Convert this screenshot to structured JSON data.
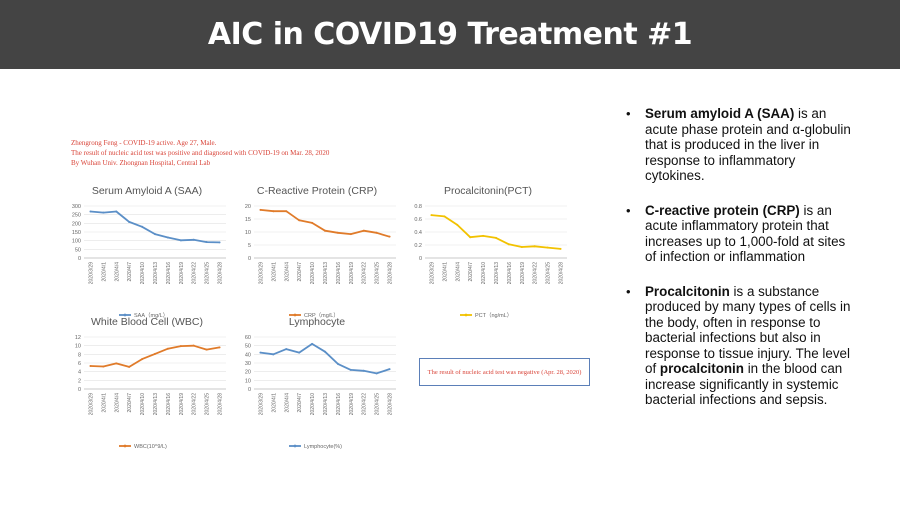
{
  "slide": {
    "title": "AIC in COVID19 Treatment #1"
  },
  "note": {
    "lines": [
      "Zhengrong Feng - COVID-19 active. Age 27, Male.",
      "The result of nucleic acid test was positive and diagnosed with COVID-19 on Mar. 28, 2020",
      "By Wuhan Univ. Zhongnan Hospital, Central Lab"
    ]
  },
  "negative_note": "The result of nucleic acid test was negative (Apr. 28, 2020)",
  "bullets": [
    {
      "bold": "Serum amyloid A (SAA)",
      "text": " is an acute phase protein and α-globulin that is produced in the liver in response to inflammatory cytokines.",
      "marker": "•"
    },
    {
      "bold": "C-reactive protein (CRP)",
      "text": " is an acute inflammatory protein that increases up to 1,000-fold at sites of infection or inflammation",
      "marker": "•"
    },
    {
      "bold": "Procalcitonin",
      "text": " is a substance produced by many types of cells in the body, often in response to bacterial infections but also in response to tissue injury. The level of ",
      "bold2": "procalcitonin",
      "text2": " in the blood can increase significantly in systemic bacterial infections and sepsis.",
      "marker": "•"
    }
  ],
  "chart_data": [
    {
      "type": "line",
      "title": "Serum Amyloid A (SAA)",
      "categories": [
        "2020/3/29",
        "2020/4/1",
        "2020/4/4",
        "2020/4/7",
        "2020/4/10",
        "2020/4/13",
        "2020/4/16",
        "2020/4/19",
        "2020/4/22",
        "2020/4/25",
        "2020/4/28"
      ],
      "series": [
        {
          "name": "SAA（mg/L）",
          "color": "#5b8fc7",
          "values": [
            268,
            262,
            268,
            208,
            180,
            138,
            118,
            102,
            105,
            92,
            90
          ]
        }
      ],
      "yticks": [
        "0",
        "50",
        "100",
        "150",
        "200",
        "250",
        "300"
      ],
      "ylim": [
        0,
        300
      ]
    },
    {
      "type": "line",
      "title": "C-Reactive Protein (CRP)",
      "categories": [
        "2020/3/29",
        "2020/4/1",
        "2020/4/4",
        "2020/4/7",
        "2020/4/10",
        "2020/4/13",
        "2020/4/16",
        "2020/4/19",
        "2020/4/22",
        "2020/4/25",
        "2020/4/28"
      ],
      "series": [
        {
          "name": "CRP（mg/L）",
          "color": "#e07b2a",
          "values": [
            18.5,
            18,
            18,
            14.5,
            13.5,
            10.5,
            9.7,
            9.2,
            10.5,
            9.7,
            8.2
          ]
        }
      ],
      "yticks": [
        "0",
        "5",
        "10",
        "15",
        "20"
      ],
      "ylim": [
        0,
        20
      ]
    },
    {
      "type": "line",
      "title": "Procalcitonin(PCT)",
      "categories": [
        "2020/3/29",
        "2020/4/1",
        "2020/4/4",
        "2020/4/7",
        "2020/4/10",
        "2020/4/13",
        "2020/4/16",
        "2020/4/19",
        "2020/4/22",
        "2020/4/25",
        "2020/4/28"
      ],
      "series": [
        {
          "name": "PCT（ng/mL）",
          "color": "#f2c200",
          "values": [
            0.66,
            0.64,
            0.51,
            0.32,
            0.34,
            0.31,
            0.21,
            0.17,
            0.18,
            0.16,
            0.14
          ]
        }
      ],
      "yticks": [
        "0",
        "0.2",
        "0.4",
        "0.6",
        "0.8"
      ],
      "ylim": [
        0,
        0.8
      ]
    },
    {
      "type": "line",
      "title": "White Blood Cell (WBC)",
      "categories": [
        "2020/3/29",
        "2020/4/1",
        "2020/4/4",
        "2020/4/7",
        "2020/4/10",
        "2020/4/13",
        "2020/4/16",
        "2020/4/19",
        "2020/4/22",
        "2020/4/25",
        "2020/4/28"
      ],
      "series": [
        {
          "name": "WBC(10^9/L)",
          "color": "#e07b2a",
          "values": [
            5.3,
            5.2,
            5.9,
            5.1,
            6.9,
            8.1,
            9.3,
            9.9,
            10.0,
            9.1,
            9.6
          ]
        }
      ],
      "yticks": [
        "0",
        "2",
        "4",
        "6",
        "8",
        "10",
        "12"
      ],
      "ylim": [
        0,
        12
      ]
    },
    {
      "type": "line",
      "title": "Lymphocyte",
      "categories": [
        "2020/3/29",
        "2020/4/1",
        "2020/4/4",
        "2020/4/7",
        "2020/4/10",
        "2020/4/13",
        "2020/4/16",
        "2020/4/19",
        "2020/4/22",
        "2020/4/25",
        "2020/4/28"
      ],
      "series": [
        {
          "name": "Lymphocyte(%)",
          "color": "#5b8fc7",
          "values": [
            42,
            40,
            46,
            42,
            52,
            43,
            29,
            22,
            21,
            18,
            23
          ]
        }
      ],
      "yticks": [
        "0",
        "10",
        "20",
        "30",
        "40",
        "50",
        "60"
      ],
      "ylim": [
        0,
        60
      ]
    }
  ]
}
